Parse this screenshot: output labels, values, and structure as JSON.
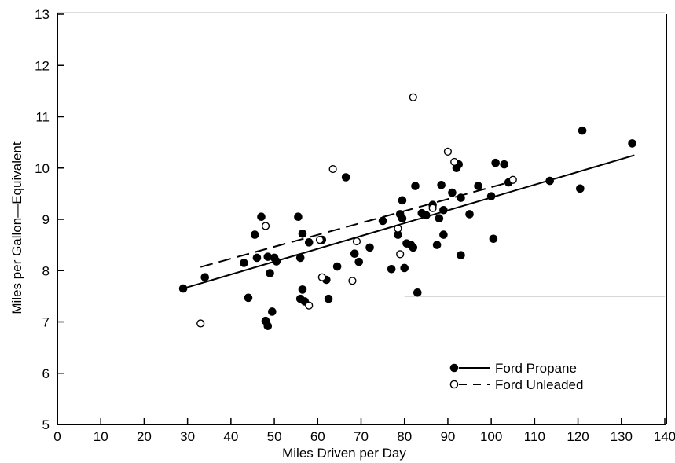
{
  "chart_data": {
    "type": "scatter",
    "xlabel": "Miles Driven per Day",
    "ylabel": "Miles per Gallon—Equivalent",
    "xlim": [
      0,
      140
    ],
    "ylim": [
      5,
      13
    ],
    "x_ticks": [
      "0",
      "10",
      "20",
      "30",
      "40",
      "50",
      "60",
      "70",
      "80",
      "90",
      "100",
      "110",
      "120",
      "130",
      "140"
    ],
    "y_ticks": [
      "5",
      "6",
      "7",
      "8",
      "9",
      "10",
      "11",
      "12",
      "13"
    ],
    "grid": false,
    "legend_position": "bottom-right",
    "series": [
      {
        "name": "Ford Propane",
        "marker": "filled-circle",
        "line_style": "solid",
        "trend": [
          [
            29,
            7.65
          ],
          [
            133,
            10.25
          ]
        ],
        "points": [
          [
            29,
            7.65
          ],
          [
            34,
            7.87
          ],
          [
            43,
            8.15
          ],
          [
            44,
            7.47
          ],
          [
            45.5,
            8.7
          ],
          [
            46,
            8.25
          ],
          [
            47,
            9.05
          ],
          [
            48,
            7.02
          ],
          [
            48.5,
            6.92
          ],
          [
            48.5,
            8.27
          ],
          [
            49,
            7.95
          ],
          [
            49.5,
            7.2
          ],
          [
            50,
            8.25
          ],
          [
            50.5,
            8.18
          ],
          [
            55.5,
            9.05
          ],
          [
            56,
            8.25
          ],
          [
            56,
            7.45
          ],
          [
            56.5,
            7.63
          ],
          [
            56.5,
            8.72
          ],
          [
            57,
            7.4
          ],
          [
            58,
            8.55
          ],
          [
            61,
            8.6
          ],
          [
            62,
            7.82
          ],
          [
            62.5,
            7.45
          ],
          [
            64.5,
            8.08
          ],
          [
            66.5,
            9.82
          ],
          [
            68.5,
            8.33
          ],
          [
            69.5,
            8.17
          ],
          [
            72,
            8.45
          ],
          [
            75,
            8.97
          ],
          [
            77,
            8.03
          ],
          [
            78.5,
            8.7
          ],
          [
            79,
            9.1
          ],
          [
            79.5,
            9.02
          ],
          [
            79.5,
            9.37
          ],
          [
            80,
            8.05
          ],
          [
            80.5,
            8.53
          ],
          [
            81.5,
            8.5
          ],
          [
            82,
            8.45
          ],
          [
            82.5,
            9.65
          ],
          [
            83,
            7.57
          ],
          [
            84,
            9.12
          ],
          [
            85,
            9.08
          ],
          [
            86.5,
            9.28
          ],
          [
            87.5,
            8.5
          ],
          [
            88,
            9.02
          ],
          [
            88.5,
            9.67
          ],
          [
            89,
            8.7
          ],
          [
            89,
            9.18
          ],
          [
            91,
            9.52
          ],
          [
            92,
            10.0
          ],
          [
            92.5,
            10.07
          ],
          [
            93,
            9.42
          ],
          [
            93,
            8.3
          ],
          [
            95,
            9.1
          ],
          [
            97,
            9.65
          ],
          [
            100,
            9.45
          ],
          [
            100.5,
            8.62
          ],
          [
            101,
            10.1
          ],
          [
            103,
            10.07
          ],
          [
            104,
            9.72
          ],
          [
            113.5,
            9.75
          ],
          [
            120.5,
            9.6
          ],
          [
            121,
            10.73
          ],
          [
            132.5,
            10.48
          ]
        ]
      },
      {
        "name": "Ford Unleaded",
        "marker": "open-circle",
        "line_style": "dashed",
        "trend": [
          [
            33,
            8.07
          ],
          [
            104,
            9.72
          ]
        ],
        "points": [
          [
            33,
            6.97
          ],
          [
            48,
            8.87
          ],
          [
            58,
            7.32
          ],
          [
            60.5,
            8.6
          ],
          [
            61,
            7.87
          ],
          [
            63.5,
            9.98
          ],
          [
            68,
            7.8
          ],
          [
            69,
            8.57
          ],
          [
            78.5,
            8.82
          ],
          [
            79,
            8.32
          ],
          [
            82,
            11.38
          ],
          [
            86.5,
            9.22
          ],
          [
            90,
            10.32
          ],
          [
            91.5,
            10.12
          ],
          [
            105,
            9.77
          ]
        ]
      }
    ]
  }
}
